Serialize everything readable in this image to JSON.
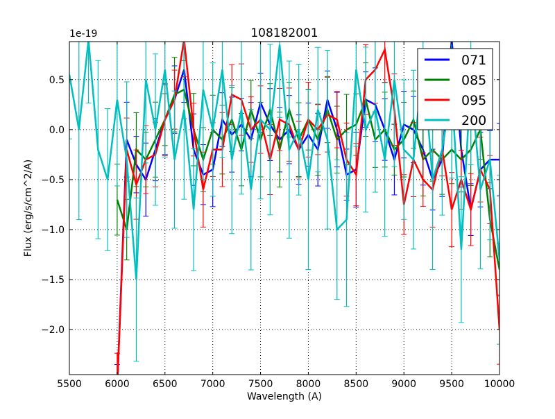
{
  "chart_data": {
    "type": "line",
    "title": "108182001",
    "xlabel": "Wavelength (A)",
    "ylabel": "Flux (erg/s/cm^2/A)",
    "y_offset_label": "1e-19",
    "y_scale": 1e-19,
    "xlim": [
      5500,
      10000
    ],
    "ylim": [
      -2.45,
      0.88
    ],
    "xticks": [
      5500,
      6000,
      6500,
      7000,
      7500,
      8000,
      8500,
      9000,
      9500,
      10000
    ],
    "xtick_labels": [
      "5500",
      "6000",
      "6500",
      "7000",
      "7500",
      "8000",
      "8500",
      "9000",
      "9500",
      "10000"
    ],
    "yticks": [
      0.5,
      0.0,
      -0.5,
      -1.0,
      -1.5,
      -2.0
    ],
    "ytick_labels": [
      "0.5",
      "0.0",
      "−0.5",
      "−1.0",
      "−1.5",
      "−2.0"
    ],
    "grid": true,
    "legend_position": "top-right",
    "series": [
      {
        "name": "071",
        "color": "#0000ff",
        "x_start": 6000,
        "x_step": 100,
        "yerr": 0.25,
        "values": [
          -2.6,
          -0.1,
          -0.35,
          -0.5,
          -0.2,
          0.1,
          0.3,
          0.6,
          -0.2,
          -0.45,
          -0.4,
          0.1,
          -0.05,
          0.05,
          -0.1,
          0.27,
          0.05,
          -0.1,
          0.0,
          -0.2,
          -0.05,
          -0.2,
          0.3,
          0.0,
          -0.45,
          -0.4,
          0.3,
          0.25,
          0.0,
          -0.3,
          0.05,
          0.0,
          -0.2,
          -0.5,
          -0.3,
          0.9,
          -0.2,
          -0.8,
          -0.4,
          -0.3,
          -0.3
        ]
      },
      {
        "name": "085",
        "color": "#008000",
        "x_start": 6000,
        "x_step": 100,
        "yerr": 0.25,
        "values": [
          -0.7,
          -1.0,
          -0.2,
          -0.3,
          -0.1,
          0.1,
          0.35,
          0.4,
          0.0,
          -0.3,
          0.0,
          -0.1,
          0.1,
          -0.2,
          0.2,
          -0.1,
          0.2,
          -0.2,
          0.2,
          -0.1,
          0.1,
          -0.1,
          0.2,
          -0.1,
          0.0,
          0.05,
          0.3,
          -0.1,
          0.0,
          -0.2,
          -0.1,
          0.1,
          -0.3,
          -0.2,
          -0.3,
          -0.2,
          -0.3,
          -0.2,
          0.0,
          -0.9,
          -1.4
        ]
      },
      {
        "name": "095",
        "color": "#ff0000",
        "x_start": 6000,
        "x_step": 100,
        "yerr": 0.25,
        "values": [
          -2.6,
          -0.2,
          -0.55,
          -0.3,
          -0.25,
          0.1,
          0.3,
          0.9,
          0.0,
          -0.6,
          -0.2,
          -0.2,
          0.35,
          0.3,
          0.0,
          0.1,
          -0.3,
          0.1,
          0.05,
          -0.2,
          0.1,
          0.0,
          0.15,
          0.1,
          -0.3,
          -0.45,
          0.5,
          0.6,
          0.8,
          0.2,
          -0.75,
          -0.3,
          -0.5,
          -0.6,
          -0.2,
          -0.8,
          -0.5,
          -0.8,
          -0.4,
          -0.6,
          -2.0
        ]
      },
      {
        "name": "200",
        "color": "#00bfbf",
        "x_start": 5500,
        "x_step": 100,
        "yerr": 0.6,
        "values": [
          0.55,
          0.0,
          0.9,
          -0.2,
          -0.5,
          0.3,
          -0.3,
          -1.5,
          0.5,
          0.0,
          0.6,
          -0.3,
          0.2,
          -0.8,
          0.4,
          0.0,
          0.6,
          -0.3,
          0.2,
          -0.6,
          0.1,
          0.0,
          0.85,
          -0.2,
          0.0,
          -0.5,
          0.2,
          -0.1,
          -1.0,
          -0.9,
          0.6,
          0.0,
          0.2,
          -0.3,
          0.5,
          -0.2,
          -0.3,
          0.7,
          -0.5,
          -0.2,
          0.4,
          -1.2,
          0.5,
          -0.6,
          -0.3,
          -1.3
        ]
      }
    ]
  }
}
